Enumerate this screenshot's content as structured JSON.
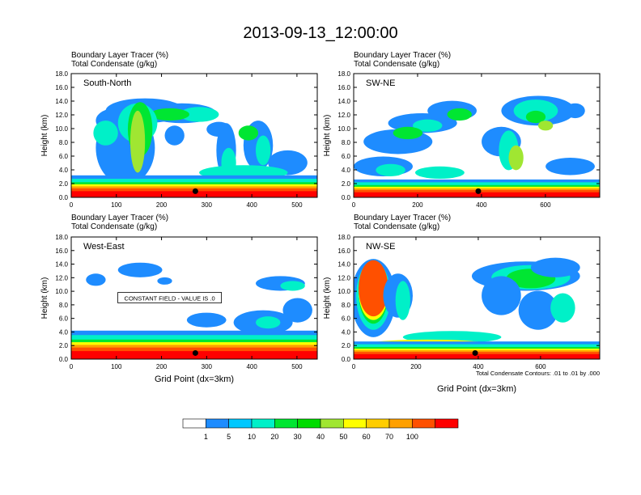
{
  "figure": {
    "title": "2013-09-13_12:00:00",
    "xlabel": "Grid Point (dx=3km)",
    "contour_note": "Total Condensate Contours: .01 to .01 by .000"
  },
  "chart_data": {
    "type": "heatmap",
    "fields": {
      "shaded": "Boundary Layer Tracer    (%)",
      "contour": "Total Condensate    (g/kg)"
    },
    "colorbar": {
      "levels": [
        "1",
        "5",
        "10",
        "20",
        "30",
        "40",
        "50",
        "60",
        "70",
        "100"
      ],
      "colors": [
        "#ffffff",
        "#1e8cff",
        "#00c8ff",
        "#00f0c8",
        "#00e632",
        "#00dc00",
        "#a0e632",
        "#ffff00",
        "#ffcd00",
        "#ffa000",
        "#ff5000",
        "#ff0000"
      ]
    },
    "panels": [
      {
        "name": "South-North",
        "ylabel": "Height (km)",
        "ylim": [
          0,
          18
        ],
        "yticks": [
          "0.0",
          "2.0",
          "4.0",
          "6.0",
          "8.0",
          "10.0",
          "12.0",
          "14.0",
          "16.0",
          "18.0"
        ],
        "xlim": [
          0,
          545
        ],
        "xticks": [
          "0",
          "100",
          "200",
          "300",
          "400",
          "500"
        ],
        "marker_x": 275,
        "marker_height_km": 0.9,
        "annotation": ""
      },
      {
        "name": "SW-NE",
        "ylabel": "Height (km)",
        "ylim": [
          0,
          18
        ],
        "yticks": [
          "0.0",
          "2.0",
          "4.0",
          "6.0",
          "8.0",
          "10.0",
          "12.0",
          "14.0",
          "16.0",
          "18.0"
        ],
        "xlim": [
          0,
          770
        ],
        "xticks": [
          "0",
          "200",
          "400",
          "600"
        ],
        "marker_x": 390,
        "marker_height_km": 0.9,
        "annotation": ""
      },
      {
        "name": "West-East",
        "ylabel": "Height (km)",
        "ylim": [
          0,
          18
        ],
        "yticks": [
          "0.0",
          "2.0",
          "4.0",
          "6.0",
          "8.0",
          "10.0",
          "12.0",
          "14.0",
          "16.0",
          "18.0"
        ],
        "xlim": [
          0,
          545
        ],
        "xticks": [
          "0",
          "100",
          "200",
          "300",
          "400",
          "500"
        ],
        "marker_x": 275,
        "marker_height_km": 0.9,
        "annotation": "CONSTANT FIELD - VALUE IS .0"
      },
      {
        "name": "NW-SE",
        "ylabel": "Height (km)",
        "ylim": [
          0,
          18
        ],
        "yticks": [
          "0.0",
          "2.0",
          "4.0",
          "6.0",
          "8.0",
          "10.0",
          "12.0",
          "14.0",
          "16.0",
          "18.0"
        ],
        "xlim": [
          0,
          790
        ],
        "xticks": [
          "0",
          "200",
          "400",
          "600"
        ],
        "marker_x": 390,
        "marker_height_km": 0.9,
        "annotation": ""
      }
    ]
  }
}
